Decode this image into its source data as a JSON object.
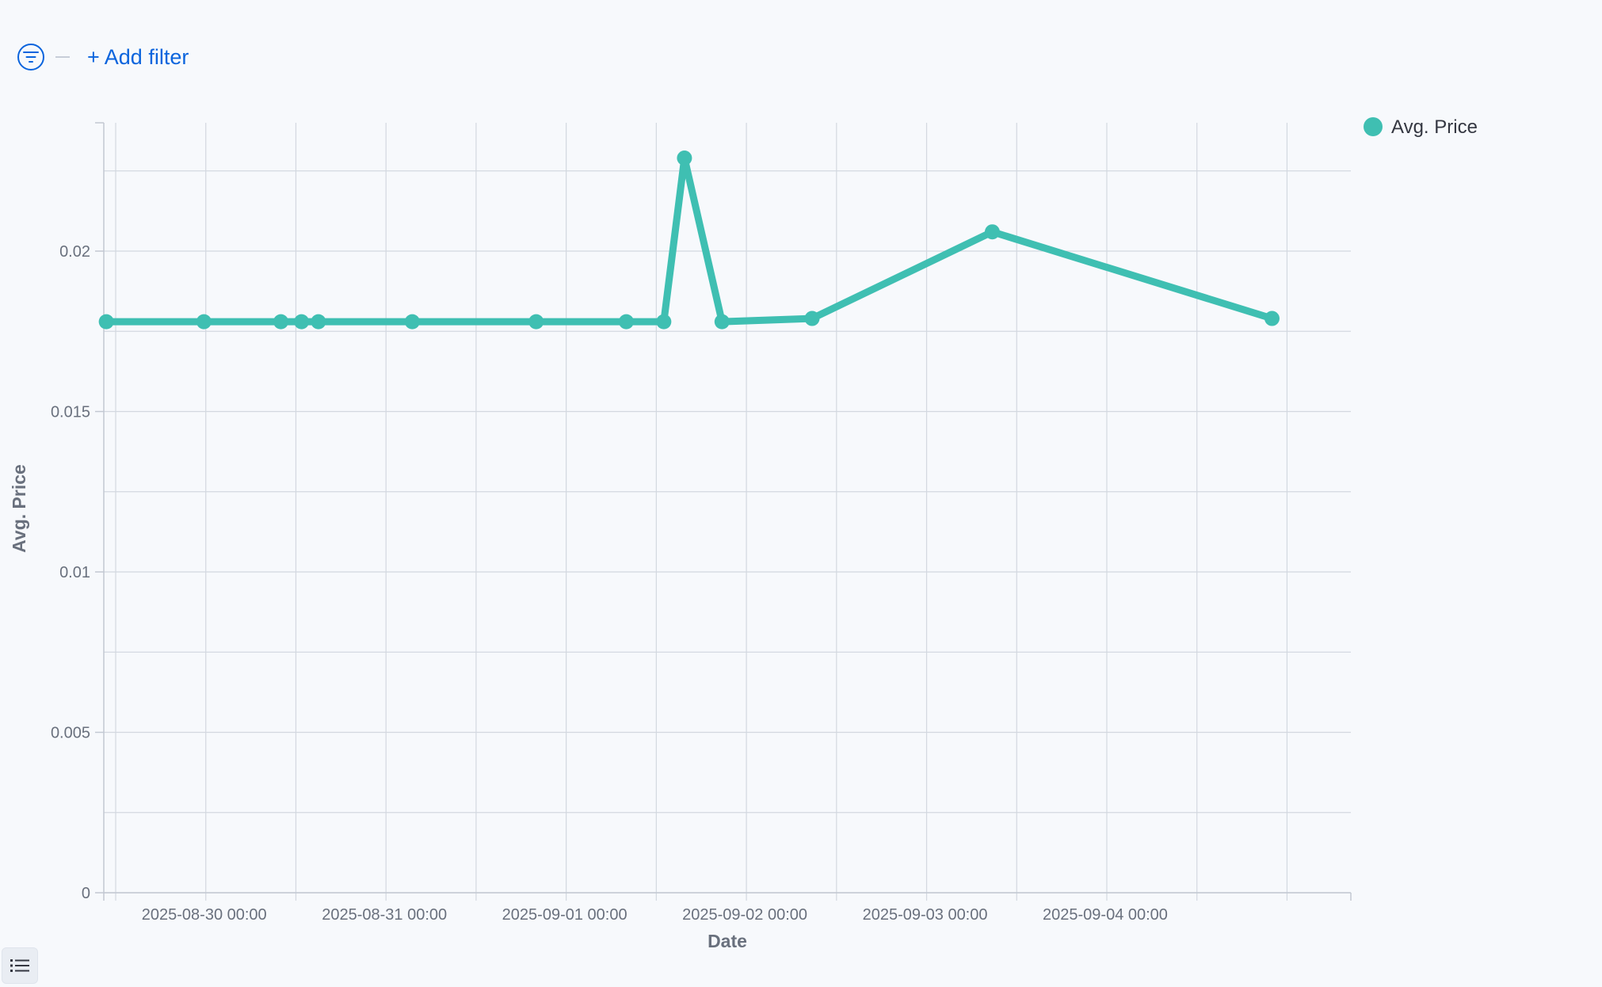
{
  "filter_bar": {
    "filter_icon": "filter-icon",
    "add_filter_label": "+ Add filter"
  },
  "legend_toggle_icon": "list-icon",
  "colors": {
    "series": "#3fbfb2",
    "grid": "#d3d8e0",
    "axis_text": "#69707d",
    "axis_title": "#69707d",
    "link": "#0b64dd"
  },
  "chart_data": {
    "type": "line",
    "title": "",
    "xlabel": "Date",
    "ylabel": "Avg. Price",
    "legend_position": "top-right",
    "grid": true,
    "ylim": [
      0,
      0.024
    ],
    "xlim": [
      "2025-08-29 10:25",
      "2025-09-05 08:30"
    ],
    "y_ticks": [
      {
        "value": 0,
        "label": "0"
      },
      {
        "value": 0.005,
        "label": "0.005"
      },
      {
        "value": 0.01,
        "label": "0.01"
      },
      {
        "value": 0.015,
        "label": "0.015"
      },
      {
        "value": 0.02,
        "label": "0.02"
      }
    ],
    "x_ticks": [
      {
        "value": "2025-08-30 00:00",
        "label": "2025-08-30 00:00"
      },
      {
        "value": "2025-08-31 00:00",
        "label": "2025-08-31 00:00"
      },
      {
        "value": "2025-09-01 00:00",
        "label": "2025-09-01 00:00"
      },
      {
        "value": "2025-09-02 00:00",
        "label": "2025-09-02 00:00"
      },
      {
        "value": "2025-09-03 00:00",
        "label": "2025-09-03 00:00"
      },
      {
        "value": "2025-09-04 00:00",
        "label": "2025-09-04 00:00"
      }
    ],
    "series": [
      {
        "name": "Avg. Price",
        "points": [
          {
            "x": "2025-08-29 10:45",
            "y": 0.0178
          },
          {
            "x": "2025-08-29 23:45",
            "y": 0.0178
          },
          {
            "x": "2025-08-30 10:00",
            "y": 0.0178
          },
          {
            "x": "2025-08-30 12:45",
            "y": 0.0178
          },
          {
            "x": "2025-08-30 15:00",
            "y": 0.0178
          },
          {
            "x": "2025-08-31 03:30",
            "y": 0.0178
          },
          {
            "x": "2025-08-31 20:00",
            "y": 0.0178
          },
          {
            "x": "2025-09-01 08:00",
            "y": 0.0178
          },
          {
            "x": "2025-09-01 13:00",
            "y": 0.0178
          },
          {
            "x": "2025-09-01 15:45",
            "y": 0.0229
          },
          {
            "x": "2025-09-01 20:45",
            "y": 0.0178
          },
          {
            "x": "2025-09-02 08:45",
            "y": 0.0179
          },
          {
            "x": "2025-09-03 08:45",
            "y": 0.0206
          },
          {
            "x": "2025-09-04 22:00",
            "y": 0.0179
          }
        ]
      }
    ]
  }
}
